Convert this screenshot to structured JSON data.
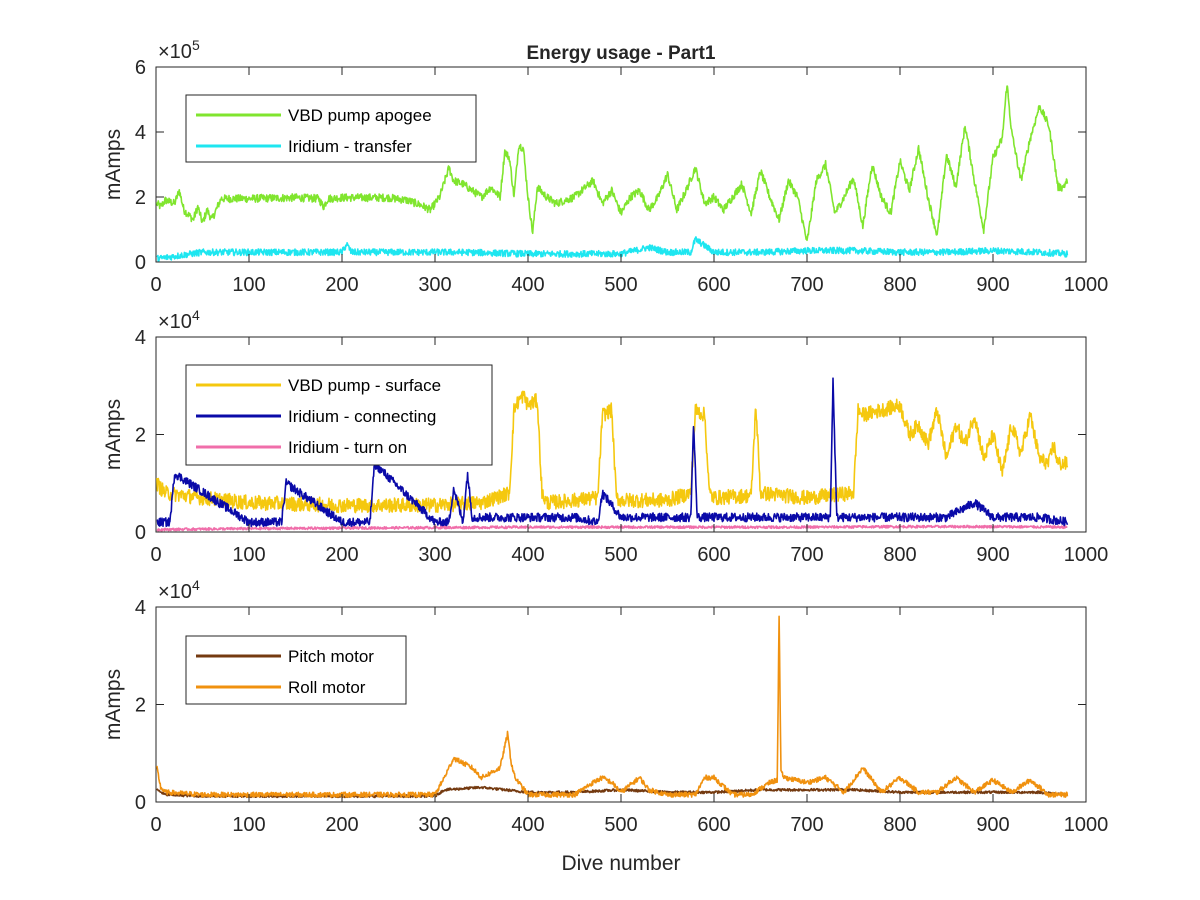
{
  "chart_data": [
    {
      "type": "line",
      "title": "Energy usage - Part1",
      "xlabel": "",
      "ylabel": "mAmps",
      "exponent": "5",
      "xlim": [
        0,
        1000
      ],
      "ylim": [
        0,
        600000
      ],
      "xticks": [
        0,
        100,
        200,
        300,
        400,
        500,
        600,
        700,
        800,
        900,
        1000
      ],
      "yticks": [
        0,
        200000,
        400000,
        600000
      ],
      "ytick_labels": [
        "0",
        "2",
        "4",
        "6"
      ],
      "legend": "top-left",
      "series": [
        {
          "name": "VBD pump apogee",
          "color": "#80e52e",
          "noise": 12000,
          "x": [
            1,
            5,
            10,
            20,
            25,
            30,
            40,
            45,
            50,
            55,
            60,
            70,
            100,
            150,
            175,
            180,
            185,
            200,
            250,
            270,
            285,
            295,
            305,
            315,
            320,
            330,
            340,
            350,
            360,
            370,
            375,
            380,
            385,
            390,
            395,
            400,
            405,
            410,
            420,
            430,
            450,
            470,
            480,
            490,
            500,
            510,
            520,
            530,
            540,
            550,
            560,
            570,
            580,
            590,
            600,
            610,
            620,
            630,
            640,
            650,
            660,
            670,
            680,
            690,
            700,
            710,
            720,
            730,
            740,
            750,
            760,
            770,
            780,
            790,
            800,
            810,
            820,
            830,
            840,
            850,
            860,
            870,
            880,
            890,
            900,
            910,
            915,
            920,
            930,
            940,
            950,
            960,
            970,
            975,
            980
          ],
          "y": [
            180000,
            170000,
            190000,
            180000,
            220000,
            160000,
            130000,
            170000,
            120000,
            160000,
            130000,
            195000,
            195000,
            198000,
            195000,
            170000,
            195000,
            198000,
            198000,
            190000,
            175000,
            160000,
            200000,
            290000,
            250000,
            240000,
            220000,
            200000,
            230000,
            200000,
            340000,
            320000,
            200000,
            360000,
            350000,
            200000,
            90000,
            230000,
            200000,
            180000,
            200000,
            250000,
            180000,
            220000,
            150000,
            200000,
            220000,
            160000,
            200000,
            270000,
            160000,
            220000,
            290000,
            180000,
            200000,
            160000,
            200000,
            240000,
            150000,
            280000,
            200000,
            130000,
            250000,
            200000,
            60000,
            250000,
            300000,
            150000,
            200000,
            260000,
            110000,
            300000,
            200000,
            150000,
            310000,
            220000,
            350000,
            200000,
            80000,
            330000,
            230000,
            420000,
            250000,
            100000,
            320000,
            380000,
            550000,
            400000,
            250000,
            380000,
            480000,
            420000,
            230000,
            230000,
            250000
          ]
        },
        {
          "name": "Iridium - transfer",
          "color": "#1ee6f0",
          "noise": 10000,
          "x": [
            1,
            50,
            100,
            150,
            200,
            205,
            210,
            250,
            300,
            330,
            400,
            500,
            530,
            550,
            575,
            580,
            600,
            650,
            700,
            750,
            800,
            850,
            900,
            950,
            980
          ],
          "y": [
            10000,
            30000,
            30000,
            30000,
            30000,
            55000,
            30000,
            30000,
            30000,
            30000,
            25000,
            25000,
            45000,
            30000,
            30000,
            70000,
            30000,
            30000,
            35000,
            35000,
            30000,
            30000,
            35000,
            30000,
            25000
          ]
        }
      ]
    },
    {
      "type": "line",
      "title": "",
      "xlabel": "",
      "ylabel": "mAmps",
      "exponent": "4",
      "xlim": [
        0,
        1000
      ],
      "ylim": [
        0,
        40000
      ],
      "xticks": [
        0,
        100,
        200,
        300,
        400,
        500,
        600,
        700,
        800,
        900,
        1000
      ],
      "yticks": [
        0,
        20000,
        40000
      ],
      "ytick_labels": [
        "0",
        "2",
        "4"
      ],
      "legend": "top-left",
      "series": [
        {
          "name": "VBD pump - surface",
          "color": "#f5c80f",
          "noise": 1500,
          "x": [
            1,
            5,
            10,
            50,
            100,
            200,
            300,
            350,
            380,
            385,
            390,
            395,
            400,
            410,
            415,
            420,
            450,
            475,
            480,
            490,
            495,
            500,
            550,
            575,
            580,
            590,
            595,
            600,
            640,
            645,
            650,
            700,
            750,
            755,
            760,
            800,
            810,
            820,
            830,
            840,
            850,
            860,
            870,
            880,
            890,
            900,
            910,
            920,
            930,
            940,
            950,
            960,
            965,
            970,
            980
          ],
          "y": [
            10000,
            9000,
            8000,
            7000,
            6000,
            5500,
            5500,
            6000,
            8000,
            25000,
            27000,
            28000,
            26000,
            27000,
            8000,
            6000,
            6500,
            7000,
            24000,
            25000,
            7000,
            6500,
            6500,
            8000,
            25000,
            24000,
            8000,
            7000,
            7500,
            26000,
            8000,
            7000,
            8000,
            25000,
            24000,
            26000,
            20000,
            22000,
            18000,
            25000,
            15000,
            22000,
            18000,
            24000,
            15000,
            20000,
            12000,
            22000,
            16000,
            24000,
            15000,
            14000,
            18000,
            14000,
            14000
          ]
        },
        {
          "name": "Iridium - connecting",
          "color": "#0a0aa8",
          "noise": 900,
          "x": [
            1,
            15,
            20,
            100,
            135,
            140,
            200,
            230,
            235,
            300,
            315,
            320,
            330,
            335,
            340,
            400,
            450,
            475,
            480,
            500,
            575,
            578,
            582,
            600,
            700,
            725,
            728,
            732,
            750,
            800,
            850,
            880,
            900,
            950,
            980
          ],
          "y": [
            2000,
            2000,
            12000,
            2000,
            2000,
            10000,
            2000,
            2000,
            14000,
            2000,
            2000,
            9000,
            2000,
            12000,
            3000,
            3000,
            3000,
            2000,
            8000,
            3000,
            3000,
            22000,
            3000,
            3000,
            3000,
            3000,
            31000,
            3000,
            3000,
            3000,
            3000,
            6000,
            3000,
            3000,
            2000
          ]
        },
        {
          "name": "Iridium - turn on",
          "color": "#f06eaa",
          "noise": 250,
          "x": [
            1,
            100,
            200,
            300,
            400,
            500,
            600,
            700,
            800,
            900,
            980
          ],
          "y": [
            500,
            700,
            800,
            900,
            1000,
            1000,
            1000,
            1000,
            1100,
            1100,
            1000
          ]
        }
      ]
    },
    {
      "type": "line",
      "title": "",
      "xlabel": "Dive number",
      "ylabel": "mAmps",
      "exponent": "4",
      "xlim": [
        0,
        1000
      ],
      "ylim": [
        0,
        40000
      ],
      "xticks": [
        0,
        100,
        200,
        300,
        400,
        500,
        600,
        700,
        800,
        900,
        1000
      ],
      "yticks": [
        0,
        20000,
        40000
      ],
      "ytick_labels": [
        "0",
        "2",
        "4"
      ],
      "legend": "top-left",
      "series": [
        {
          "name": "Pitch motor",
          "color": "#743a10",
          "noise": 250,
          "x": [
            1,
            10,
            50,
            100,
            200,
            300,
            310,
            350,
            400,
            450,
            500,
            550,
            600,
            650,
            700,
            750,
            800,
            850,
            900,
            950,
            980
          ],
          "y": [
            2500,
            1500,
            1200,
            1200,
            1200,
            1200,
            2500,
            3000,
            2000,
            2000,
            2500,
            2000,
            2000,
            2500,
            2500,
            2500,
            2000,
            2000,
            2000,
            2000,
            1500
          ]
        },
        {
          "name": "Roll motor",
          "color": "#f0910f",
          "noise": 500,
          "x": [
            1,
            5,
            10,
            50,
            100,
            200,
            300,
            310,
            320,
            340,
            350,
            370,
            378,
            382,
            386,
            400,
            420,
            450,
            470,
            480,
            490,
            500,
            520,
            530,
            550,
            580,
            590,
            600,
            620,
            640,
            660,
            668,
            670,
            672,
            676,
            700,
            720,
            740,
            760,
            780,
            800,
            820,
            840,
            860,
            880,
            900,
            920,
            940,
            960,
            980
          ],
          "y": [
            7000,
            3000,
            2000,
            1500,
            1500,
            1500,
            1500,
            5000,
            9000,
            7000,
            5000,
            7000,
            14000,
            8000,
            5000,
            1500,
            1500,
            1500,
            4000,
            5000,
            4000,
            2000,
            5000,
            2500,
            1500,
            1500,
            5000,
            5000,
            1500,
            1500,
            4000,
            4500,
            38000,
            6000,
            5000,
            4000,
            5000,
            2000,
            7000,
            2000,
            5000,
            2000,
            2000,
            5000,
            2000,
            4500,
            2000,
            4500,
            1500,
            1500
          ]
        }
      ]
    }
  ]
}
